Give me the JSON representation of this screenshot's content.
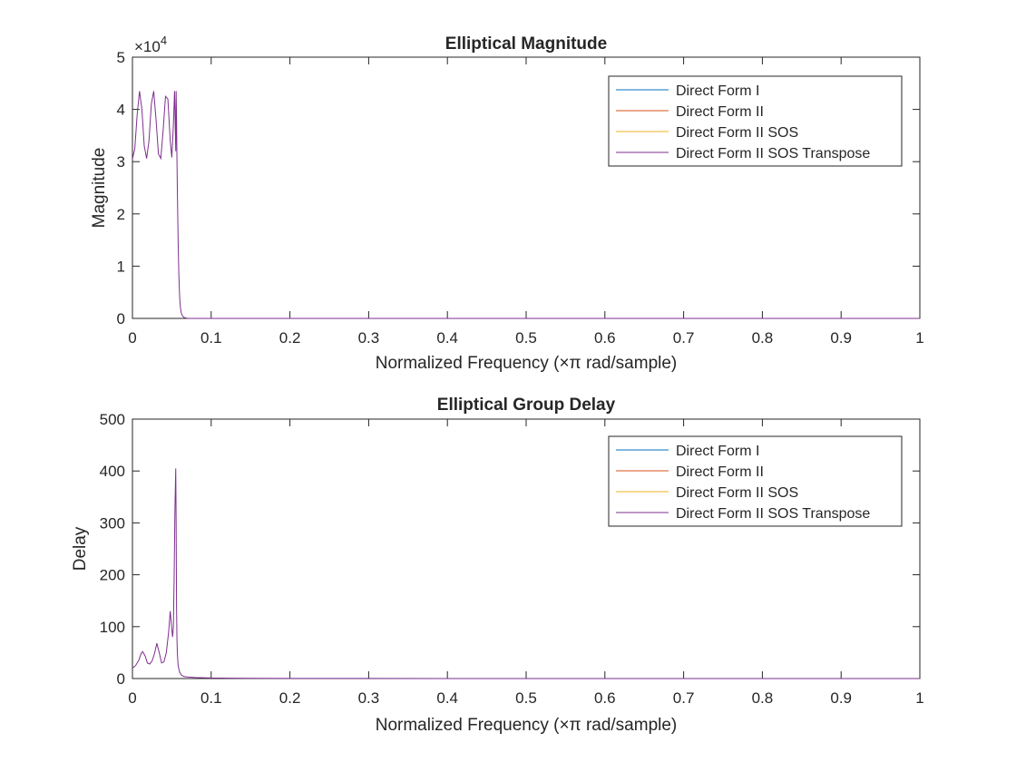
{
  "chart_data": [
    {
      "type": "line",
      "title": "Elliptical Magnitude",
      "xlabel": "Normalized Frequency (×π rad/sample)",
      "ylabel": "Magnitude",
      "xlim": [
        0,
        1
      ],
      "ylim": [
        0,
        50000
      ],
      "y_multiplier": "×10",
      "y_multiplier_exp": "4",
      "xticks": [
        "0",
        "0.1",
        "0.2",
        "0.3",
        "0.4",
        "0.5",
        "0.6",
        "0.7",
        "0.8",
        "0.9",
        "1"
      ],
      "yticks": [
        "0",
        "1",
        "2",
        "3",
        "4",
        "5"
      ],
      "grid": false,
      "legend_position": "top-right",
      "series": [
        {
          "name": "Direct Form I",
          "color": "#0072BD",
          "x": [],
          "y": []
        },
        {
          "name": "Direct Form II",
          "color": "#D95319",
          "x": [],
          "y": []
        },
        {
          "name": "Direct Form II SOS",
          "color": "#EDB120",
          "x": [],
          "y": []
        },
        {
          "name": "Direct Form II SOS Transpose",
          "color": "#7E2F8E",
          "x": [
            0,
            0.003,
            0.006,
            0.009,
            0.012,
            0.015,
            0.018,
            0.021,
            0.024,
            0.027,
            0.03,
            0.033,
            0.036,
            0.039,
            0.042,
            0.045,
            0.048,
            0.05,
            0.052,
            0.0535,
            0.055,
            0.0555,
            0.056,
            0.0565,
            0.057,
            0.058,
            0.059,
            0.06,
            0.061,
            0.062,
            0.064,
            0.066,
            0.068,
            0.07,
            0.075,
            0.08,
            0.09,
            0.1,
            0.2,
            0.3,
            0.4,
            0.5,
            0.6,
            0.7,
            0.8,
            0.9,
            1.0
          ],
          "y": [
            30500,
            32500,
            39000,
            43500,
            40000,
            33000,
            30600,
            34000,
            41000,
            43500,
            38000,
            31500,
            30600,
            36000,
            42500,
            42000,
            34000,
            30800,
            37000,
            43500,
            32000,
            43500,
            38000,
            30800,
            25000,
            15000,
            8000,
            4000,
            2000,
            1000,
            400,
            150,
            60,
            20,
            5,
            2,
            1,
            0,
            0,
            0,
            0,
            0,
            0,
            0,
            0,
            0,
            0
          ]
        }
      ]
    },
    {
      "type": "line",
      "title": "Elliptical Group Delay",
      "xlabel": "Normalized Frequency (×π rad/sample)",
      "ylabel": "Delay",
      "xlim": [
        0,
        1
      ],
      "ylim": [
        0,
        500
      ],
      "xticks": [
        "0",
        "0.1",
        "0.2",
        "0.3",
        "0.4",
        "0.5",
        "0.6",
        "0.7",
        "0.8",
        "0.9",
        "1"
      ],
      "yticks": [
        "0",
        "100",
        "200",
        "300",
        "400",
        "500"
      ],
      "grid": false,
      "legend_position": "top-right",
      "series": [
        {
          "name": "Direct Form I",
          "color": "#0072BD",
          "x": [],
          "y": []
        },
        {
          "name": "Direct Form II",
          "color": "#D95319",
          "x": [],
          "y": []
        },
        {
          "name": "Direct Form II SOS",
          "color": "#EDB120",
          "x": [],
          "y": []
        },
        {
          "name": "Direct Form II SOS Transpose",
          "color": "#7E2F8E",
          "x": [
            0,
            0.004,
            0.008,
            0.011,
            0.013,
            0.016,
            0.019,
            0.022,
            0.025,
            0.028,
            0.031,
            0.034,
            0.037,
            0.04,
            0.043,
            0.046,
            0.048,
            0.05,
            0.051,
            0.052,
            0.053,
            0.054,
            0.055,
            0.0555,
            0.056,
            0.0565,
            0.057,
            0.058,
            0.06,
            0.062,
            0.065,
            0.07,
            0.08,
            0.09,
            0.1,
            0.15,
            0.2,
            0.3,
            0.4,
            0.5,
            0.6,
            0.7,
            0.8,
            0.9,
            1.0
          ],
          "y": [
            20,
            25,
            35,
            48,
            52,
            44,
            30,
            28,
            34,
            48,
            68,
            50,
            30,
            32,
            50,
            90,
            130,
            95,
            80,
            100,
            200,
            330,
            405,
            300,
            140,
            80,
            50,
            25,
            12,
            7,
            4,
            3,
            2,
            1.5,
            1,
            0.5,
            0.3,
            0.2,
            0,
            0,
            0,
            0,
            0,
            0,
            0
          ]
        }
      ]
    }
  ]
}
